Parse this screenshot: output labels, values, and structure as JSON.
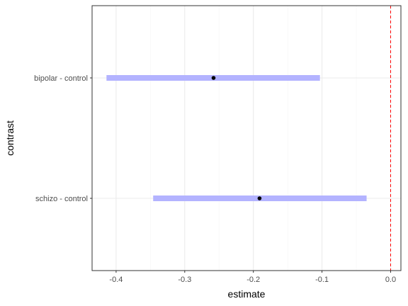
{
  "chart_data": {
    "type": "interval",
    "xlabel": "estimate",
    "ylabel": "contrast",
    "xlim": [
      -0.435,
      0.015
    ],
    "x_ticks": [
      -0.4,
      -0.3,
      -0.2,
      -0.1,
      0.0
    ],
    "x_tick_labels": [
      "-0.4",
      "-0.3",
      "-0.2",
      "-0.1",
      "0.0"
    ],
    "categories": [
      "bipolar - control",
      "schizo - control"
    ],
    "estimates": [
      -0.258,
      -0.191
    ],
    "lower": [
      -0.414,
      -0.346
    ],
    "upper": [
      -0.103,
      -0.035
    ],
    "reference_line": 0.0,
    "grid": true,
    "colors": {
      "interval": "#b3b3ff",
      "point": "#000000",
      "reference_line": "#ff0000",
      "grid_major": "#ebebeb",
      "grid_minor": "#f5f5f5",
      "panel_border": "#333333"
    }
  }
}
